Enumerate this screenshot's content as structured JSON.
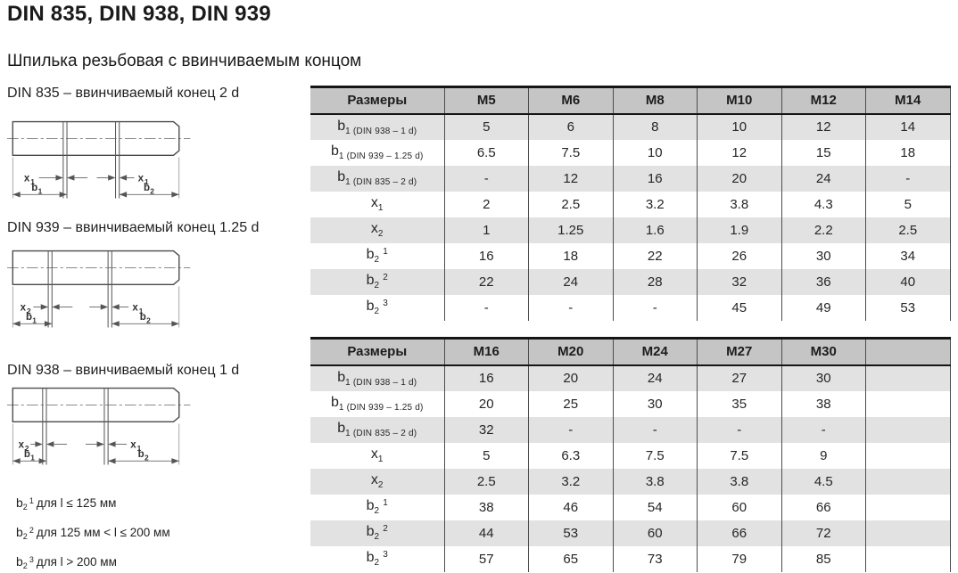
{
  "page": {
    "title": "DIN 835, DIN 938, DIN 939",
    "subtitle": "Шпилька резьбовая с ввинчиваемым концом"
  },
  "colors": {
    "header_bg": "#c5c5c5",
    "stripe_bg": "#e2e2e2",
    "border": "#4d4d4d",
    "text": "#262626"
  },
  "drawings": [
    {
      "caption": "DIN 835 – ввинчиваемый конец 2 d",
      "labels": {
        "lx": "x",
        "lxs": "1",
        "rx": "x",
        "rxs": "1",
        "lb": "b",
        "lbs": "1",
        "rb": "b",
        "rbs": "2"
      }
    },
    {
      "caption": "DIN 939 – ввинчиваемый конец 1.25 d",
      "labels": {
        "lx": "x",
        "lxs": "2",
        "rx": "x",
        "rxs": "1",
        "lb": "b",
        "lbs": "1",
        "rb": "b",
        "rbs": "2"
      }
    },
    {
      "caption": "DIN 938 – ввинчиваемый конец 1 d",
      "labels": {
        "lx": "x",
        "lxs": "2",
        "rx": "x",
        "rxs": "1",
        "lb": "b",
        "lbs": "1",
        "rb": "b",
        "rbs": "2"
      }
    }
  ],
  "tables": [
    {
      "header": [
        "Размеры",
        "M5",
        "M6",
        "M8",
        "M10",
        "M12",
        "M14"
      ],
      "rows": [
        {
          "base": "b",
          "sub": "1 (DIN 938 – 1 d)",
          "sup": "",
          "values": [
            "5",
            "6",
            "8",
            "10",
            "12",
            "14"
          ]
        },
        {
          "base": "b",
          "sub": "1 (DIN 939 – 1.25 d)",
          "sup": "",
          "values": [
            "6.5",
            "7.5",
            "10",
            "12",
            "15",
            "18"
          ]
        },
        {
          "base": "b",
          "sub": "1 (DIN 835 – 2 d)",
          "sup": "",
          "values": [
            "-",
            "12",
            "16",
            "20",
            "24",
            "-"
          ]
        },
        {
          "base": "x",
          "sub": "1",
          "sup": "",
          "values": [
            "2",
            "2.5",
            "3.2",
            "3.8",
            "4.3",
            "5"
          ]
        },
        {
          "base": "x",
          "sub": "2",
          "sup": "",
          "values": [
            "1",
            "1.25",
            "1.6",
            "1.9",
            "2.2",
            "2.5"
          ]
        },
        {
          "base": "b",
          "sub": "2",
          "sup": "1",
          "values": [
            "16",
            "18",
            "22",
            "26",
            "30",
            "34"
          ]
        },
        {
          "base": "b",
          "sub": "2",
          "sup": "2",
          "values": [
            "22",
            "24",
            "28",
            "32",
            "36",
            "40"
          ]
        },
        {
          "base": "b",
          "sub": "2",
          "sup": "3",
          "values": [
            "-",
            "-",
            "-",
            "45",
            "49",
            "53"
          ]
        }
      ]
    },
    {
      "header": [
        "Размеры",
        "M16",
        "M20",
        "M24",
        "M27",
        "M30",
        ""
      ],
      "rows": [
        {
          "base": "b",
          "sub": "1 (DIN 938 – 1 d)",
          "sup": "",
          "values": [
            "16",
            "20",
            "24",
            "27",
            "30",
            ""
          ]
        },
        {
          "base": "b",
          "sub": "1 (DIN 939 – 1.25 d)",
          "sup": "",
          "values": [
            "20",
            "25",
            "30",
            "35",
            "38",
            ""
          ]
        },
        {
          "base": "b",
          "sub": "1 (DIN 835 – 2 d)",
          "sup": "",
          "values": [
            "32",
            "-",
            "-",
            "-",
            "-",
            ""
          ]
        },
        {
          "base": "x",
          "sub": "1",
          "sup": "",
          "values": [
            "5",
            "6.3",
            "7.5",
            "7.5",
            "9",
            ""
          ]
        },
        {
          "base": "x",
          "sub": "2",
          "sup": "",
          "values": [
            "2.5",
            "3.2",
            "3.8",
            "3.8",
            "4.5",
            ""
          ]
        },
        {
          "base": "b",
          "sub": "2",
          "sup": "1",
          "values": [
            "38",
            "46",
            "54",
            "60",
            "66",
            ""
          ]
        },
        {
          "base": "b",
          "sub": "2",
          "sup": "2",
          "values": [
            "44",
            "53",
            "60",
            "66",
            "72",
            ""
          ]
        },
        {
          "base": "b",
          "sub": "2",
          "sup": "3",
          "values": [
            "57",
            "65",
            "73",
            "79",
            "85",
            ""
          ]
        }
      ]
    }
  ],
  "footnotes": [
    {
      "base": "b",
      "sub": "2",
      "sup": "1",
      "text": "для l ≤ 125 мм"
    },
    {
      "base": "b",
      "sub": "2",
      "sup": "2",
      "text": "для 125 мм < l ≤ 200 мм"
    },
    {
      "base": "b",
      "sub": "2",
      "sup": "3",
      "text": "для l > 200 мм"
    }
  ]
}
